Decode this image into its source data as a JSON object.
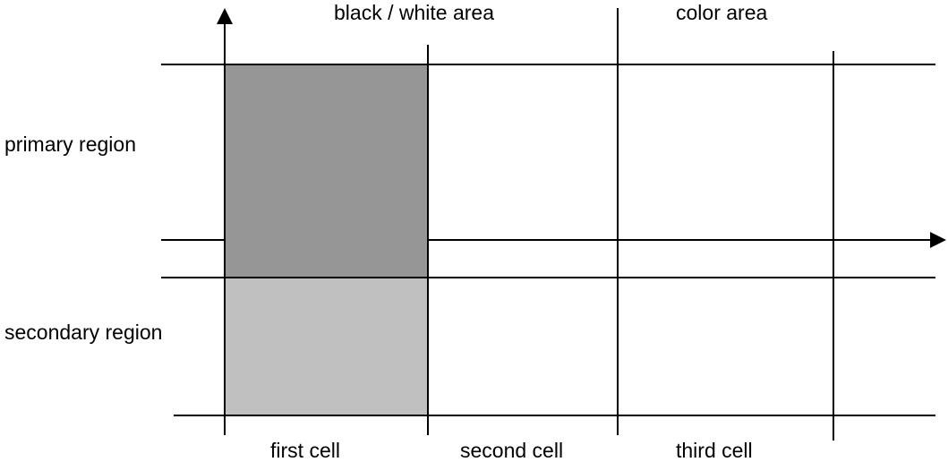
{
  "columns": {
    "bw_area": "black / white area",
    "color_area": "color area"
  },
  "rows": {
    "primary": "primary region",
    "secondary": "secondary region"
  },
  "cells": {
    "first": "first cell",
    "second": "second cell",
    "third": "third cell"
  },
  "colors": {
    "primary_fill": "#969696",
    "secondary_fill": "#c0c0c0",
    "line": "#000000",
    "background": "#ffffff"
  }
}
